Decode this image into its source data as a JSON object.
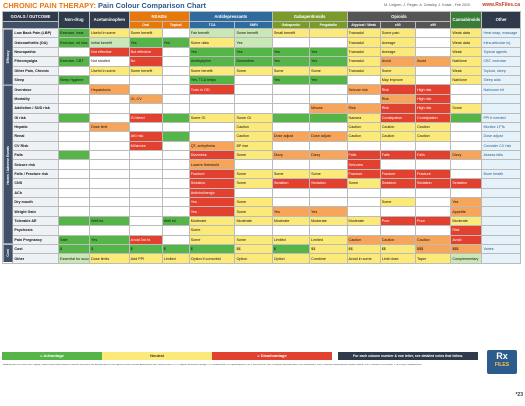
{
  "header": {
    "title_prefix": "CHRONIC PAIN THERAPY:",
    "title_rest": "Pain Colour Comparison Chart",
    "meta": "M. Lofgren, J. Regier, A. Crawley, J. Kosar - Feb 2020",
    "site": "www.RxFiles.ca"
  },
  "columns": {
    "goals": "GOALS / OUTCOME",
    "non_drug": "Non-drug",
    "acet": "Acetaminophen",
    "nsaids": "NSAIDs",
    "oral": "Oral",
    "topical": "Topical",
    "anti": "Antidepressants",
    "tca": "TCA",
    "snri": "SNRI",
    "gaba": "Gabapentinoids",
    "gabapentin": "Gabapentin",
    "pregabalin": "Pregabalin",
    "atypical": "Atypical / Weak",
    "opioids": "Opioids",
    "strong": "Strong (MED)",
    "med_low": "≤90",
    "med_high": "≥90",
    "cannabinoids": "Cannabinoids",
    "other": "Other"
  },
  "sections": {
    "efficacy": "Efficacy",
    "harms": "Harms / Adverse Events",
    "cost": "Cost"
  },
  "rows": [
    {
      "label": "Low Back Pain (LBP)",
      "c": [
        "Exercise, heat",
        "Useful in some",
        "Some benefit",
        "",
        "Fair benefit",
        "Some benefit",
        "Small benefit",
        "",
        "Tramadol",
        "Some pain",
        "",
        "Weak data",
        "Heat wrap, massage"
      ]
    },
    {
      "label": "Osteoarthritis (OA)",
      "c": [
        "Exercise, wt loss",
        "Initial benefit",
        "Yes",
        "Yes",
        "Some data",
        "Yes",
        "",
        "",
        "Tramadol",
        "Average",
        "",
        "Weak data",
        "Intra-articular inj."
      ]
    },
    {
      "label": "Neuropathic",
      "c": [
        "",
        "Not effective",
        "Not effective",
        "",
        "Yes",
        "Yes",
        "Yes",
        "Yes",
        "Tramadol",
        "Average",
        "",
        "Weak",
        "Topical agents"
      ]
    },
    {
      "label": "Fibromyalgia",
      "c": [
        "Exercise, CBT",
        "Not studied",
        "No",
        "",
        "Amitriptyline",
        "Duloxetine",
        "Yes",
        "Yes",
        "Tramadol",
        "Avoid",
        "Avoid",
        "Nabilone",
        "CBT, exercise"
      ]
    },
    {
      "label": "Other Pain, Chronic",
      "c": [
        "",
        "Useful in some",
        "Some benefit",
        "",
        "Some benefit",
        "Some",
        "Some",
        "Some",
        "Tramadol",
        "Some",
        "",
        "Weak",
        "Topical, sleep"
      ]
    },
    {
      "label": "Sleep",
      "c": [
        "Sleep hygiene",
        "",
        "",
        "",
        "Yes, TCA helps",
        "",
        "Yes",
        "Yes",
        "",
        "May improve",
        "",
        "Nabilone",
        "Sleep aids"
      ]
    },
    {
      "label": "Overdose",
      "c": [
        "",
        "Hepatotoxic",
        "",
        "",
        "Toxic in OD",
        "",
        "",
        "",
        "Seizure risk",
        "Risk",
        "High risk",
        "",
        "Naloxone kit"
      ]
    },
    {
      "label": "Mortality",
      "c": [
        "",
        "",
        "GI, CV",
        "",
        "",
        "",
        "",
        "",
        "",
        "Risk",
        "High risk",
        "",
        ""
      ]
    },
    {
      "label": "Addiction / SUD risk",
      "c": [
        "",
        "",
        "",
        "",
        "",
        "",
        "",
        "Misuse",
        "Risk",
        "Risk",
        "High risk",
        "Some",
        ""
      ]
    },
    {
      "label": "GI risk",
      "c": [
        "",
        "",
        "GI bleed",
        "",
        "Some GI",
        "Some GI",
        "",
        "",
        "Nausea",
        "Constipation",
        "Constipation",
        "",
        "PPI if needed"
      ]
    },
    {
      "label": "Hepatic",
      "c": [
        "",
        "Dose limit",
        "",
        "",
        "",
        "Caution",
        "",
        "",
        "Caution",
        "Caution",
        "Caution",
        "",
        "Monitor LFTs"
      ]
    },
    {
      "label": "Renal",
      "c": [
        "",
        "",
        "AKI risk",
        "",
        "",
        "Caution",
        "Dose adjust",
        "Dose adjust",
        "Caution",
        "Caution",
        "Caution",
        "",
        "Dose adjust"
      ]
    },
    {
      "label": "CV Risk",
      "c": [
        "",
        "",
        "MI/stroke",
        "",
        "QT, arrhythmia",
        "BP rise",
        "",
        "",
        "",
        "",
        "",
        "",
        "Consider CV risk"
      ]
    },
    {
      "label": "Falls",
      "c": [
        "",
        "",
        "",
        "",
        "Dizziness",
        "Some",
        "Dizzy",
        "Dizzy",
        "Falls",
        "Falls",
        "Falls",
        "Dizzy",
        "Assess falls"
      ]
    },
    {
      "label": "Seizure risk",
      "c": [
        "",
        "",
        "",
        "",
        "Lowers threshold",
        "",
        "",
        "",
        "Seizures",
        "",
        "",
        "",
        ""
      ]
    },
    {
      "label": "Falls / Fracture risk",
      "c": [
        "",
        "",
        "",
        "",
        "Fracture",
        "Some",
        "Some",
        "Some",
        "Fracture",
        "Fracture",
        "Fracture",
        "",
        "Bone health"
      ]
    },
    {
      "label": "CNS",
      "c": [
        "",
        "",
        "",
        "",
        "Sedation",
        "Some",
        "Sedation",
        "Sedation",
        "Some",
        "Sedation",
        "Sedation",
        "Sedation",
        ""
      ]
    },
    {
      "label": "ACh",
      "c": [
        "",
        "",
        "",
        "",
        "Anticholinergic",
        "",
        "",
        "",
        "",
        "",
        "",
        "",
        ""
      ]
    },
    {
      "label": "Dry mouth",
      "c": [
        "",
        "",
        "",
        "",
        "Yes",
        "Some",
        "",
        "",
        "",
        "Some",
        "",
        "Yes",
        ""
      ]
    },
    {
      "label": "Weight Gain",
      "c": [
        "",
        "",
        "",
        "",
        "Yes",
        "Some",
        "Yes",
        "Yes",
        "",
        "",
        "",
        "Appetite",
        ""
      ]
    },
    {
      "label": "Tolerable AE",
      "c": [
        "",
        "Well tol.",
        "",
        "Well tol.",
        "Moderate",
        "Moderate",
        "Moderate",
        "Moderate",
        "Moderate",
        "Poor",
        "Poor",
        "Moderate",
        ""
      ]
    },
    {
      "label": "Psychosis",
      "c": [
        "",
        "",
        "",
        "",
        "Some",
        "",
        "",
        "",
        "",
        "",
        "",
        "Risk",
        ""
      ]
    },
    {
      "label": "Pain Pregnancy",
      "c": [
        "Safe",
        "Yes",
        "Avoid 3rd tri.",
        "",
        "Some",
        "Some",
        "Limited",
        "Limited",
        "Caution",
        "Caution",
        "Caution",
        "Avoid",
        ""
      ]
    },
    {
      "label": "Cost",
      "c": [
        "$",
        "$",
        "$",
        "$",
        "$",
        "$$",
        "$",
        "$$",
        "$$",
        "$$",
        "$$$",
        "$$$",
        "Varies"
      ]
    },
    {
      "label": "Other",
      "c": [
        "Essential for success",
        "Dose limits",
        "Add PPI",
        "Limited",
        "Option if comorbid",
        "Option",
        "Option",
        "Combine",
        "Avoid in some",
        "Limit dose",
        "Taper",
        "Complementary",
        ""
      ]
    }
  ],
  "legend": {
    "advantage": "= Advantage",
    "neutral": "Neutral",
    "disadvantage": "= Disadvantage",
    "note": "For each column number & row letter, see detailed notes that follow."
  },
  "logo": {
    "top": "Rx",
    "bottom": "FILES"
  },
  "page": "*23",
  "footnote": "* Adapted from Pain colour chart. Legend: colours reflect relative balance of benefits and harms; see detailed notes on each agent for clinical context. Abbreviations: AE = adverse event, CBT = cognitive behavioural therapy, CV = cardiovascular, GI = gastrointestinal, LBP = low back pain, MED = morphine equivalent dose, OA = osteoarthritis, SNRI = serotonin norepinephrine reuptake inhibitor, SUD = substance use disorder, TCA = tricyclic antidepressant."
}
